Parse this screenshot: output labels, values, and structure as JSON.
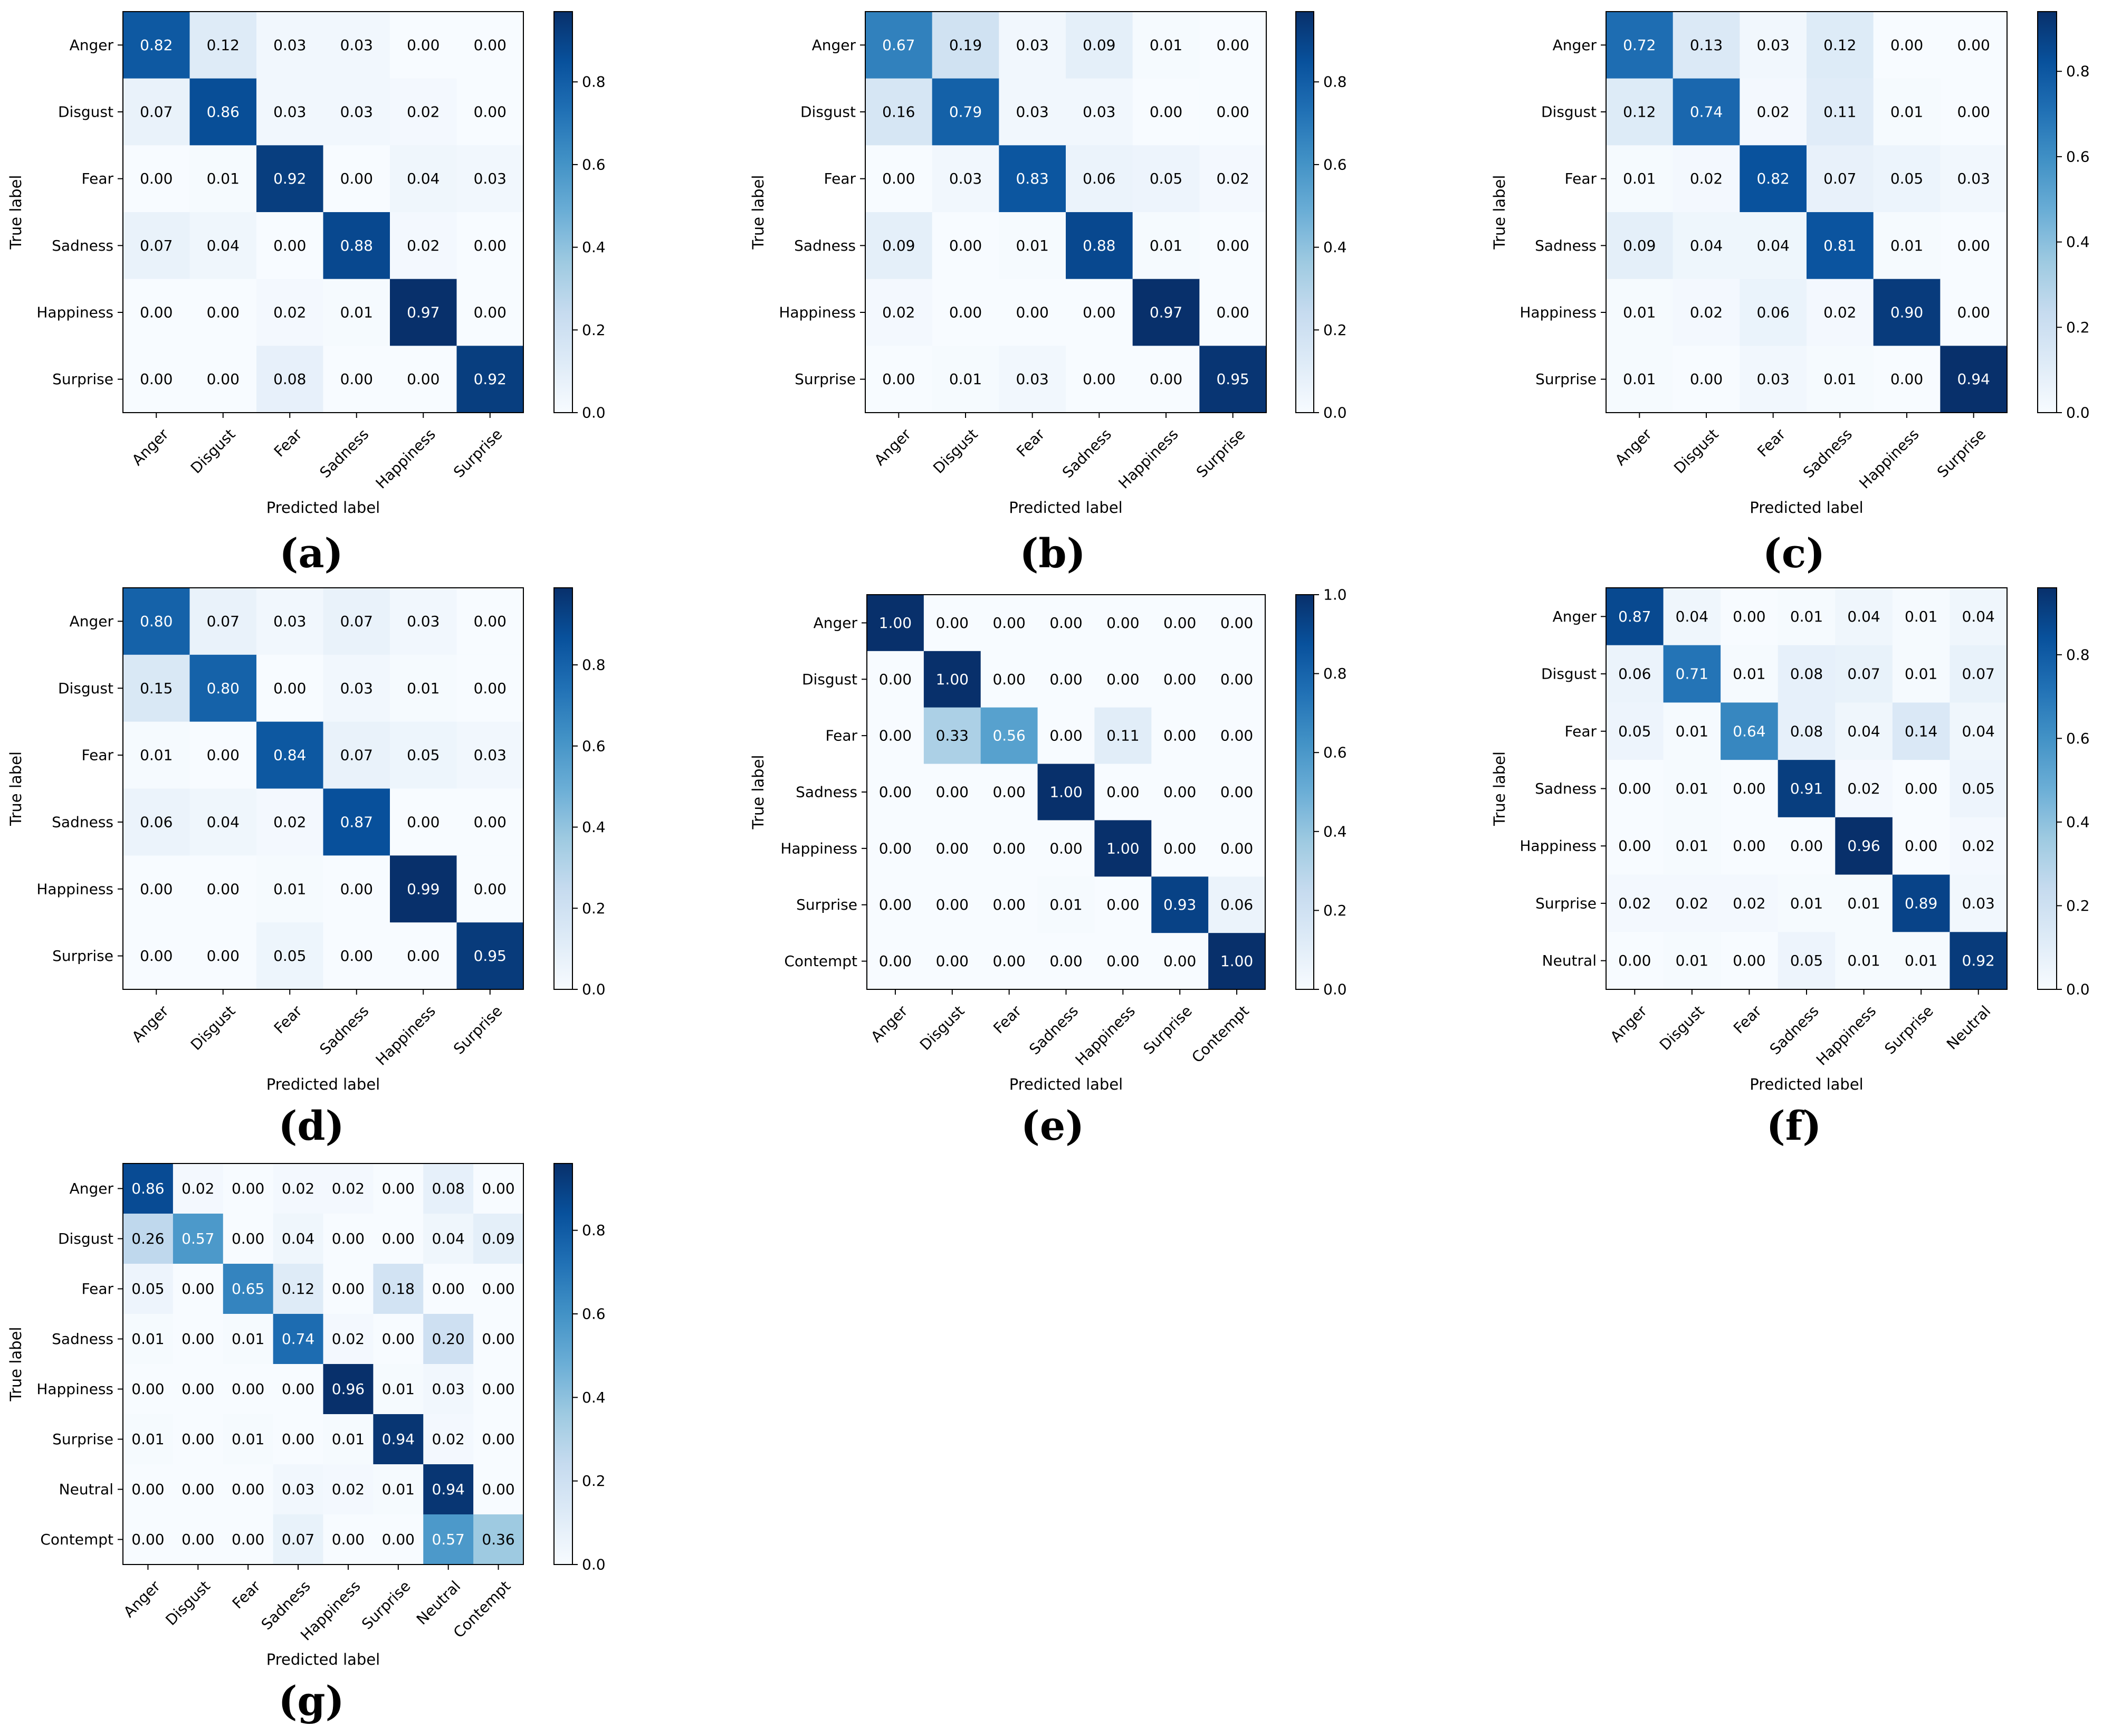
{
  "chart_data": [
    {
      "type": "heatmap",
      "panel": "(a)",
      "xlabel": "Predicted label",
      "ylabel": "True label",
      "labels": [
        "Anger",
        "Disgust",
        "Fear",
        "Sadness",
        "Happiness",
        "Surprise"
      ],
      "matrix": [
        [
          0.82,
          0.12,
          0.03,
          0.03,
          0.0,
          0.0
        ],
        [
          0.07,
          0.86,
          0.03,
          0.03,
          0.02,
          0.0
        ],
        [
          0.0,
          0.01,
          0.92,
          0.0,
          0.04,
          0.03
        ],
        [
          0.07,
          0.04,
          0.0,
          0.88,
          0.02,
          0.0
        ],
        [
          0.0,
          0.0,
          0.02,
          0.01,
          0.97,
          0.0
        ],
        [
          0.0,
          0.0,
          0.08,
          0.0,
          0.0,
          0.92
        ]
      ],
      "colorbar": {
        "min": 0,
        "max": 0.97,
        "ticks": [
          "0.0",
          "0.2",
          "0.4",
          "0.6",
          "0.8"
        ],
        "colormap": "Blues"
      }
    },
    {
      "type": "heatmap",
      "panel": "(b)",
      "xlabel": "Predicted label",
      "ylabel": "True label",
      "labels": [
        "Anger",
        "Disgust",
        "Fear",
        "Sadness",
        "Happiness",
        "Surprise"
      ],
      "matrix": [
        [
          0.67,
          0.19,
          0.03,
          0.09,
          0.01,
          0.0
        ],
        [
          0.16,
          0.79,
          0.03,
          0.03,
          0.0,
          0.0
        ],
        [
          0.0,
          0.03,
          0.83,
          0.06,
          0.05,
          0.02
        ],
        [
          0.09,
          0.0,
          0.01,
          0.88,
          0.01,
          0.0
        ],
        [
          0.02,
          0.0,
          0.0,
          0.0,
          0.97,
          0.0
        ],
        [
          0.0,
          0.01,
          0.03,
          0.0,
          0.0,
          0.95
        ]
      ],
      "colorbar": {
        "min": 0,
        "max": 0.97,
        "ticks": [
          "0.0",
          "0.2",
          "0.4",
          "0.6",
          "0.8"
        ],
        "colormap": "Blues"
      }
    },
    {
      "type": "heatmap",
      "panel": "(c)",
      "xlabel": "Predicted label",
      "ylabel": "True label",
      "labels": [
        "Anger",
        "Disgust",
        "Fear",
        "Sadness",
        "Happiness",
        "Surprise"
      ],
      "matrix": [
        [
          0.72,
          0.13,
          0.03,
          0.12,
          0.0,
          0.0
        ],
        [
          0.12,
          0.74,
          0.02,
          0.11,
          0.01,
          0.0
        ],
        [
          0.01,
          0.02,
          0.82,
          0.07,
          0.05,
          0.03
        ],
        [
          0.09,
          0.04,
          0.04,
          0.81,
          0.01,
          0.0
        ],
        [
          0.01,
          0.02,
          0.06,
          0.02,
          0.9,
          0.0
        ],
        [
          0.01,
          0.0,
          0.03,
          0.01,
          0.0,
          0.94
        ]
      ],
      "colorbar": {
        "min": 0,
        "max": 0.94,
        "ticks": [
          "0.0",
          "0.2",
          "0.4",
          "0.6",
          "0.8"
        ],
        "colormap": "Blues"
      }
    },
    {
      "type": "heatmap",
      "panel": "(d)",
      "xlabel": "Predicted label",
      "ylabel": "True label",
      "labels": [
        "Anger",
        "Disgust",
        "Fear",
        "Sadness",
        "Happiness",
        "Surprise"
      ],
      "matrix": [
        [
          0.8,
          0.07,
          0.03,
          0.07,
          0.03,
          0.0
        ],
        [
          0.15,
          0.8,
          0.0,
          0.03,
          0.01,
          0.0
        ],
        [
          0.01,
          0.0,
          0.84,
          0.07,
          0.05,
          0.03
        ],
        [
          0.06,
          0.04,
          0.02,
          0.87,
          0.0,
          0.0
        ],
        [
          0.0,
          0.0,
          0.01,
          0.0,
          0.99,
          0.0
        ],
        [
          0.0,
          0.0,
          0.05,
          0.0,
          0.0,
          0.95
        ]
      ],
      "colorbar": {
        "min": 0,
        "max": 0.99,
        "ticks": [
          "0.0",
          "0.2",
          "0.4",
          "0.6",
          "0.8"
        ],
        "colormap": "Blues"
      }
    },
    {
      "type": "heatmap",
      "panel": "(e)",
      "xlabel": "Predicted label",
      "ylabel": "True label",
      "labels": [
        "Anger",
        "Disgust",
        "Fear",
        "Sadness",
        "Happiness",
        "Surprise",
        "Contempt"
      ],
      "matrix": [
        [
          1.0,
          0.0,
          0.0,
          0.0,
          0.0,
          0.0,
          0.0
        ],
        [
          0.0,
          1.0,
          0.0,
          0.0,
          0.0,
          0.0,
          0.0
        ],
        [
          0.0,
          0.33,
          0.56,
          0.0,
          0.11,
          0.0,
          0.0
        ],
        [
          0.0,
          0.0,
          0.0,
          1.0,
          0.0,
          0.0,
          0.0
        ],
        [
          0.0,
          0.0,
          0.0,
          0.0,
          1.0,
          0.0,
          0.0
        ],
        [
          0.0,
          0.0,
          0.0,
          0.01,
          0.0,
          0.93,
          0.06
        ],
        [
          0.0,
          0.0,
          0.0,
          0.0,
          0.0,
          0.0,
          1.0
        ]
      ],
      "colorbar": {
        "min": 0,
        "max": 1.0,
        "ticks": [
          "0.0",
          "0.2",
          "0.4",
          "0.6",
          "0.8",
          "1.0"
        ],
        "colormap": "Blues"
      }
    },
    {
      "type": "heatmap",
      "panel": "(f)",
      "xlabel": "Predicted label",
      "ylabel": "True label",
      "labels": [
        "Anger",
        "Disgust",
        "Fear",
        "Sadness",
        "Happiness",
        "Surprise",
        "Neutral"
      ],
      "matrix": [
        [
          0.87,
          0.04,
          0.0,
          0.01,
          0.04,
          0.01,
          0.04
        ],
        [
          0.06,
          0.71,
          0.01,
          0.08,
          0.07,
          0.01,
          0.07
        ],
        [
          0.05,
          0.01,
          0.64,
          0.08,
          0.04,
          0.14,
          0.04
        ],
        [
          0.0,
          0.01,
          0.0,
          0.91,
          0.02,
          0.0,
          0.05
        ],
        [
          0.0,
          0.01,
          0.0,
          0.0,
          0.96,
          0.0,
          0.02
        ],
        [
          0.02,
          0.02,
          0.02,
          0.01,
          0.01,
          0.89,
          0.03
        ],
        [
          0.0,
          0.01,
          0.0,
          0.05,
          0.01,
          0.01,
          0.92
        ]
      ],
      "colorbar": {
        "min": 0,
        "max": 0.96,
        "ticks": [
          "0.0",
          "0.2",
          "0.4",
          "0.6",
          "0.8"
        ],
        "colormap": "Blues"
      }
    },
    {
      "type": "heatmap",
      "panel": "(g)",
      "xlabel": "Predicted label",
      "ylabel": "True label",
      "labels": [
        "Anger",
        "Disgust",
        "Fear",
        "Sadness",
        "Happiness",
        "Surprise",
        "Neutral",
        "Contempt"
      ],
      "matrix": [
        [
          0.86,
          0.02,
          0.0,
          0.02,
          0.02,
          0.0,
          0.08,
          0.0
        ],
        [
          0.26,
          0.57,
          0.0,
          0.04,
          0.0,
          0.0,
          0.04,
          0.09
        ],
        [
          0.05,
          0.0,
          0.65,
          0.12,
          0.0,
          0.18,
          0.0,
          0.0
        ],
        [
          0.01,
          0.0,
          0.01,
          0.74,
          0.02,
          0.0,
          0.2,
          0.0
        ],
        [
          0.0,
          0.0,
          0.0,
          0.0,
          0.96,
          0.01,
          0.03,
          0.0
        ],
        [
          0.01,
          0.0,
          0.01,
          0.0,
          0.01,
          0.94,
          0.02,
          0.0
        ],
        [
          0.0,
          0.0,
          0.0,
          0.03,
          0.02,
          0.01,
          0.94,
          0.0
        ],
        [
          0.0,
          0.0,
          0.0,
          0.07,
          0.0,
          0.0,
          0.57,
          0.36
        ]
      ],
      "colorbar": {
        "min": 0,
        "max": 0.96,
        "ticks": [
          "0.0",
          "0.2",
          "0.4",
          "0.6",
          "0.8"
        ],
        "colormap": "Blues"
      }
    }
  ]
}
